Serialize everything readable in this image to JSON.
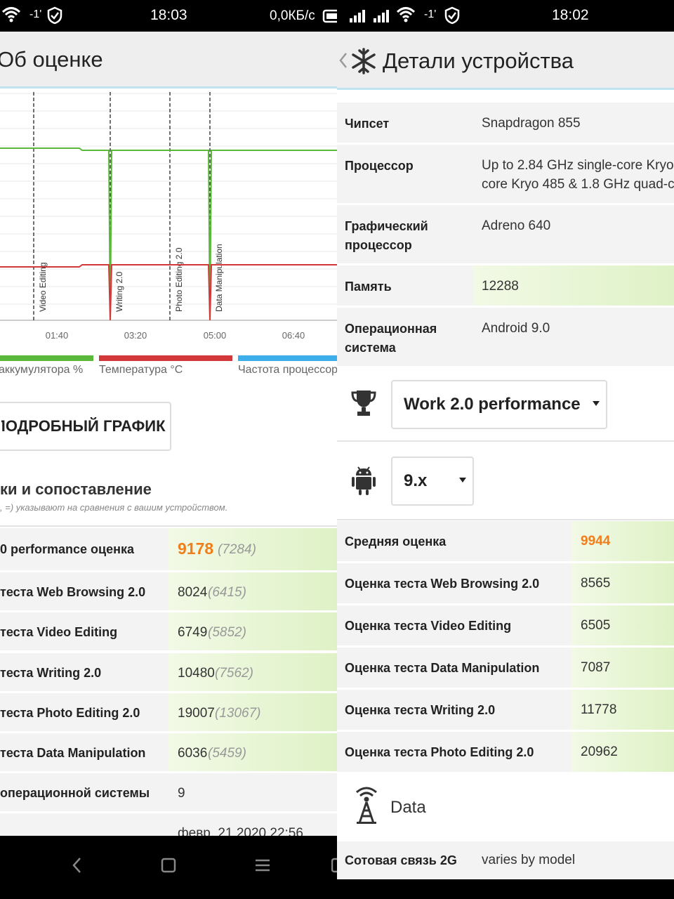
{
  "left": {
    "status": {
      "time": "18:03",
      "speed": "0,0КБ/с",
      "sim": "-1'"
    },
    "title": "Об оценке",
    "chart": {
      "x_ticks": [
        "01:40",
        "03:20",
        "05:00",
        "06:40"
      ],
      "markers": [
        "Video Editing",
        "Writing 2.0",
        "Photo Editing 2.0",
        "Data Manipulation"
      ],
      "legend": [
        "аккумулятора %",
        "Температура °C",
        "Частота процессора"
      ],
      "colors": {
        "battery": "#5ab83a",
        "temperature": "#d2383a",
        "frequency": "#3daee9"
      }
    },
    "detail_button": "ПОДРОБНЫЙ ГРАФИК",
    "section_title": "ки и сопоставление",
    "section_note": ", =) указывают на сравнения с вашим устройством.",
    "rows": [
      {
        "label": "0 performance оценка",
        "value": "9178",
        "prev": "(7284)"
      },
      {
        "label": "теста Web Browsing 2.0",
        "value": "8024",
        "prev": "(6415)"
      },
      {
        "label": "теста Video Editing",
        "value": "6749",
        "prev": "(5852)"
      },
      {
        "label": "теста Writing 2.0",
        "value": "10480",
        "prev": "(7562)"
      },
      {
        "label": "теста Photo Editing 2.0",
        "value": "19007",
        "prev": "(13067)"
      },
      {
        "label": "теста Data Manipulation",
        "value": "6036",
        "prev": "(5459)"
      },
      {
        "label": "операционной системы",
        "value": "9",
        "prev": ""
      },
      {
        "label": "",
        "value": "февр. 21 2020 22:56",
        "prev": ""
      }
    ]
  },
  "right": {
    "status": {
      "time": "18:02",
      "sim": "-1'"
    },
    "title": "Детали устройства",
    "specs": [
      {
        "label": "Чипсет",
        "value": "Snapdragon 855"
      },
      {
        "label": "Процессор",
        "value": "Up to 2.84 GHz single-core Kryo",
        "value2": "core Kryo 485 & 1.8 GHz quad-c"
      },
      {
        "label": "Графический",
        "label2": "процессор",
        "value": "Adreno 640"
      },
      {
        "label": "Память",
        "value": "12288"
      },
      {
        "label": "Операционная",
        "label2": "система",
        "value": "Android 9.0"
      }
    ],
    "benchmark_select": "Work 2.0 performance",
    "version_select": "9.x",
    "scores": [
      {
        "label": "Средняя оценка",
        "value": "9944"
      },
      {
        "label": "Оценка теста Web Browsing 2.0",
        "value": "8565"
      },
      {
        "label": "Оценка теста Video Editing",
        "value": "6505"
      },
      {
        "label": "Оценка теста Data Manipulation",
        "value": "7087"
      },
      {
        "label": "Оценка теста Writing 2.0",
        "value": "11778"
      },
      {
        "label": "Оценка теста Photo Editing 2.0",
        "value": "20962"
      }
    ],
    "data_section": "Data",
    "cell_row": {
      "label": "Сотовая связь 2G",
      "value": "varies by model"
    },
    "accent": "#f07e1a"
  }
}
